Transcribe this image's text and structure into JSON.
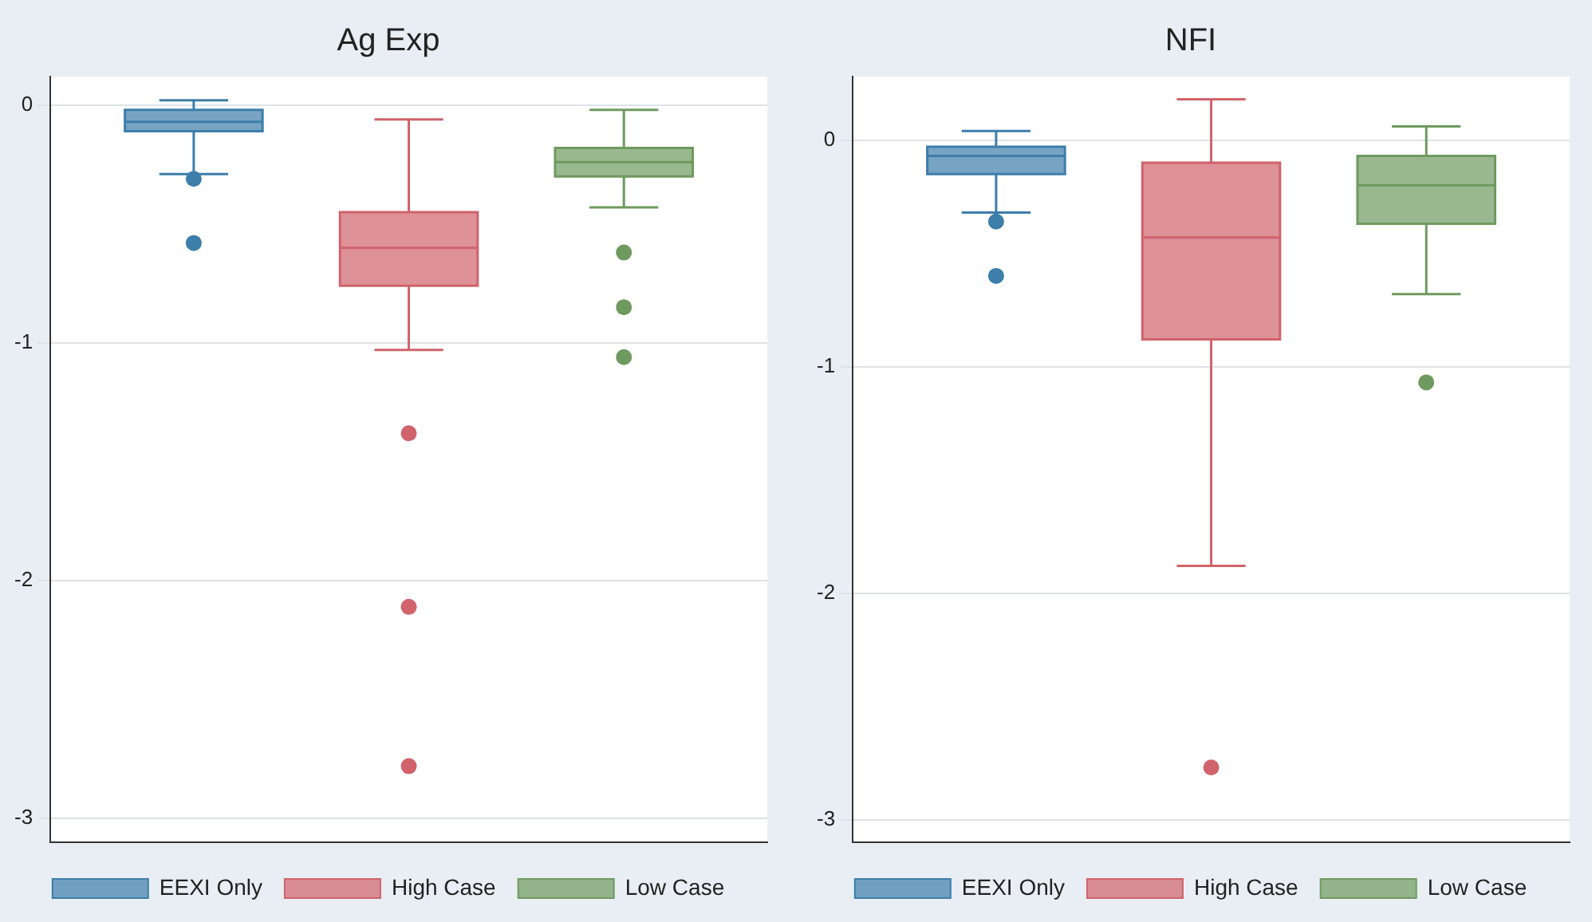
{
  "chart_data": [
    {
      "type": "box",
      "title": "Ag Exp",
      "categories": [
        null
      ],
      "ylim": [
        -3.1,
        0.12
      ],
      "yticks": [
        0,
        -1,
        -2,
        -3
      ],
      "grid": "y",
      "legend": "bottom",
      "series": [
        {
          "name": "EEXI Only",
          "color": "#3d7eaa",
          "boxes": [
            {
              "low": -0.29,
              "q1": -0.11,
              "median": -0.07,
              "q3": -0.02,
              "high": 0.02,
              "outliers": [
                -0.31,
                -0.58
              ]
            }
          ]
        },
        {
          "name": "High Case",
          "color": "#d0636b",
          "boxes": [
            {
              "low": -1.03,
              "q1": -0.76,
              "median": -0.6,
              "q3": -0.45,
              "high": -0.06,
              "outliers": [
                -1.38,
                -2.11,
                -2.78
              ]
            }
          ]
        },
        {
          "name": "Low Case",
          "color": "#6f9a5f",
          "boxes": [
            {
              "low": -0.43,
              "q1": -0.3,
              "median": -0.24,
              "q3": -0.18,
              "high": -0.02,
              "outliers": [
                -0.62,
                -0.85,
                -1.06
              ]
            }
          ]
        }
      ]
    },
    {
      "type": "box",
      "title": "NFI",
      "categories": [
        null
      ],
      "ylim": [
        -3.1,
        0.28
      ],
      "yticks": [
        0,
        -1,
        -2,
        -3
      ],
      "grid": "y",
      "legend": "bottom",
      "series": [
        {
          "name": "EEXI Only",
          "color": "#3d7eaa",
          "boxes": [
            {
              "low": -0.32,
              "q1": -0.15,
              "median": -0.07,
              "q3": -0.03,
              "high": 0.04,
              "outliers": [
                -0.36,
                -0.6
              ]
            }
          ]
        },
        {
          "name": "High Case",
          "color": "#d0636b",
          "boxes": [
            {
              "low": -1.88,
              "q1": -0.88,
              "median": -0.43,
              "q3": -0.1,
              "high": 0.18,
              "outliers": [
                -2.77
              ]
            }
          ]
        },
        {
          "name": "Low Case",
          "color": "#6f9a5f",
          "boxes": [
            {
              "low": -0.68,
              "q1": -0.37,
              "median": -0.2,
              "q3": -0.07,
              "high": 0.06,
              "outliers": [
                -1.07
              ]
            }
          ]
        }
      ]
    }
  ]
}
